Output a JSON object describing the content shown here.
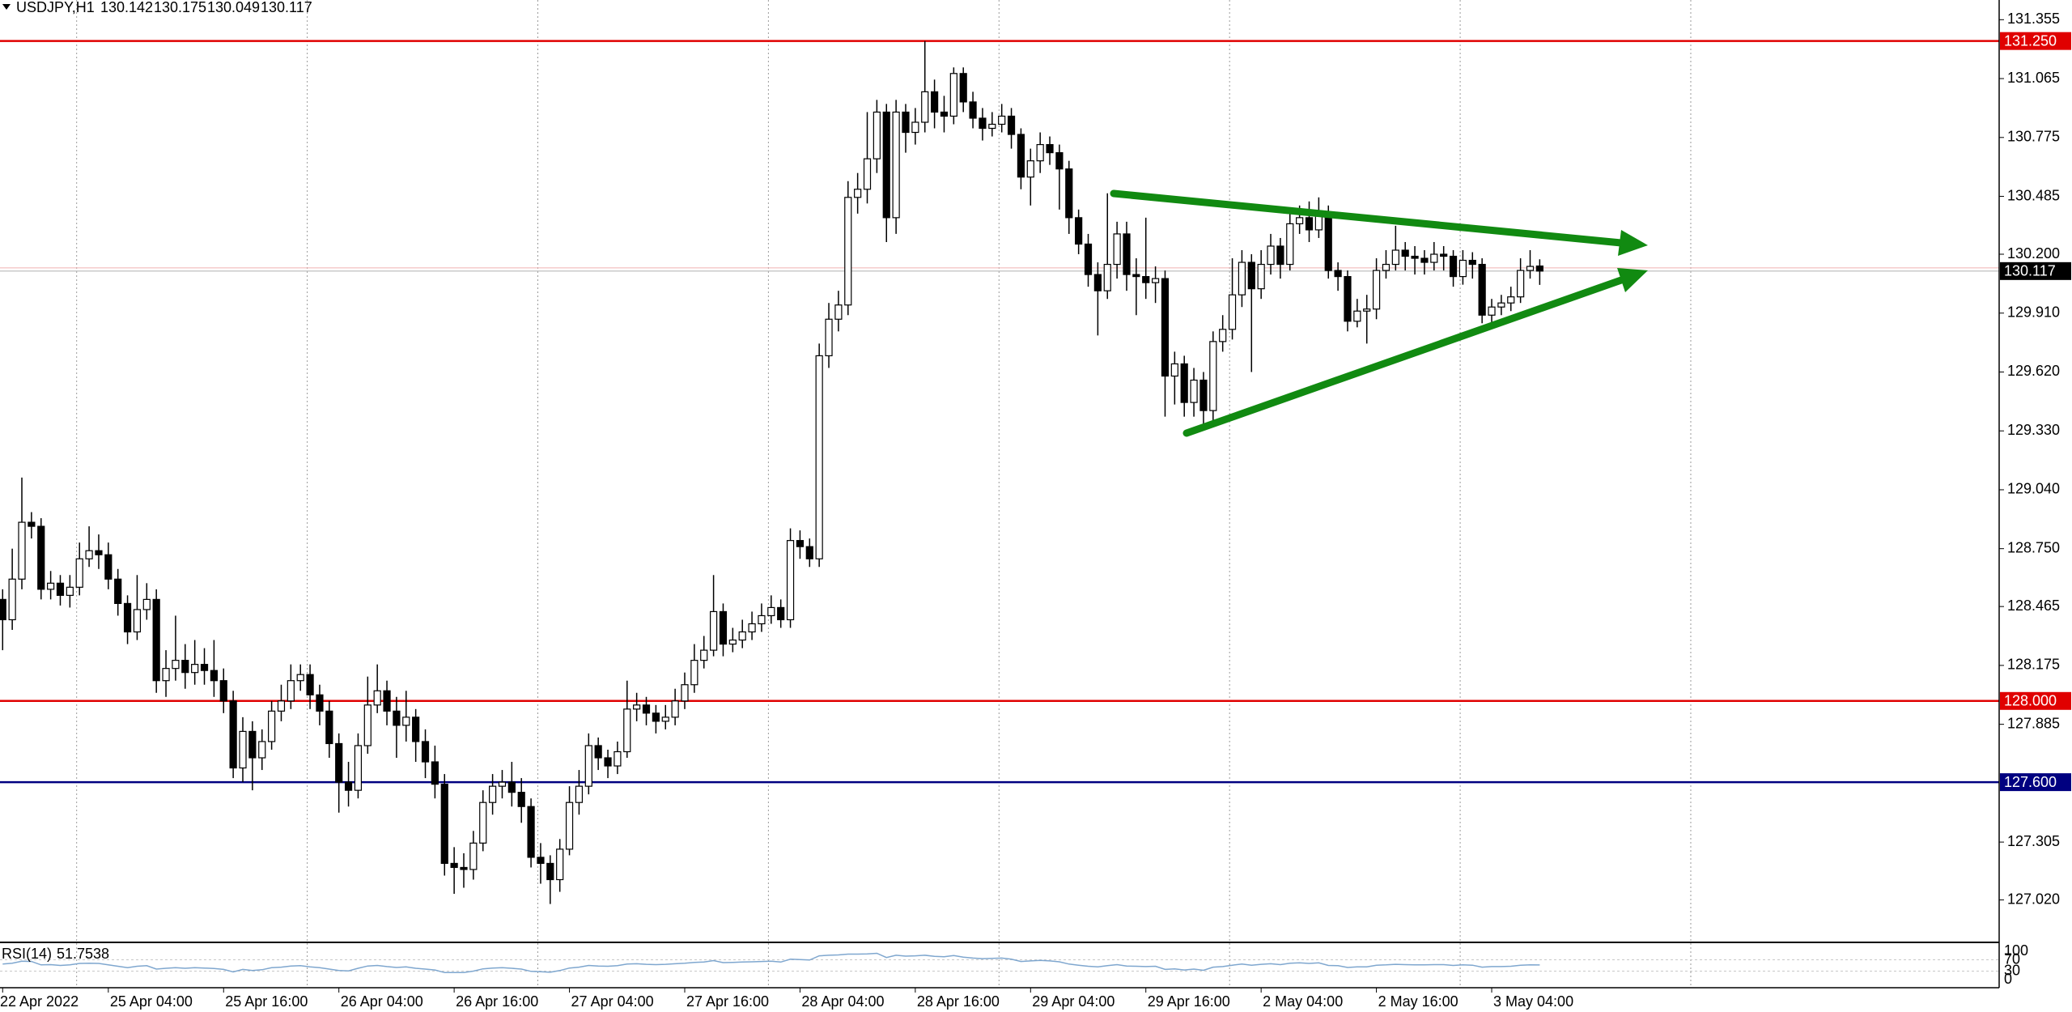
{
  "chart_data": {
    "type": "candlestick",
    "title": "USDJPY,H1",
    "ylim": [
      126.819,
      131.452
    ],
    "yticks": [
      131.355,
      131.065,
      130.775,
      130.485,
      {
        "value": 130.2,
        "label": "130.200"
      },
      {
        "value": 129.91,
        "label": "129.910"
      },
      {
        "value": 129.62,
        "label": "129.620"
      },
      {
        "value": 129.33,
        "label": "129.330"
      },
      {
        "value": 129.04,
        "label": "129.040"
      },
      {
        "value": 128.75,
        "label": "128.750"
      },
      128.465,
      128.175,
      127.885,
      127.305,
      {
        "value": 127.02,
        "label": "127.020"
      }
    ],
    "categories": [
      "22 Apr 2022",
      null,
      null,
      null,
      null,
      null,
      null,
      null,
      null,
      null,
      null,
      "25 Apr 04:00",
      null,
      null,
      null,
      null,
      null,
      null,
      null,
      null,
      null,
      null,
      null,
      "25 Apr 16:00",
      null,
      null,
      null,
      null,
      null,
      null,
      null,
      null,
      null,
      null,
      null,
      "26 Apr 04:00",
      null,
      null,
      null,
      null,
      null,
      null,
      null,
      null,
      null,
      null,
      null,
      "26 Apr 16:00",
      null,
      null,
      null,
      null,
      null,
      null,
      null,
      null,
      null,
      null,
      null,
      "27 Apr 04:00",
      null,
      null,
      null,
      null,
      null,
      null,
      null,
      null,
      null,
      null,
      null,
      "27 Apr 16:00",
      null,
      null,
      null,
      null,
      null,
      null,
      null,
      null,
      null,
      null,
      null,
      "28 Apr 04:00",
      null,
      null,
      null,
      null,
      null,
      null,
      null,
      null,
      null,
      null,
      null,
      "28 Apr 16:00",
      null,
      null,
      null,
      null,
      null,
      null,
      null,
      null,
      null,
      null,
      null,
      "29 Apr 04:00",
      null,
      null,
      null,
      null,
      null,
      null,
      null,
      null,
      null,
      null,
      null,
      "29 Apr 16:00",
      null,
      null,
      null,
      null,
      null,
      null,
      null,
      null,
      null,
      null,
      null,
      "2 May 04:00",
      null,
      null,
      null,
      null,
      null,
      null,
      null,
      null,
      null,
      null,
      null,
      "2 May 16:00",
      null,
      null,
      null,
      null,
      null,
      null,
      null,
      null,
      null,
      null,
      null,
      "3 May 04:00",
      null,
      null,
      null,
      null,
      null
    ],
    "candles": [
      [
        128.5,
        128.55,
        128.25,
        128.4
      ],
      [
        128.4,
        128.75,
        128.35,
        128.6
      ],
      [
        128.6,
        129.1,
        128.55,
        128.88
      ],
      [
        128.88,
        128.93,
        128.8,
        128.86
      ],
      [
        128.86,
        128.9,
        128.5,
        128.55
      ],
      [
        128.55,
        128.64,
        128.5,
        128.58
      ],
      [
        128.58,
        128.62,
        128.47,
        128.52
      ],
      [
        128.52,
        128.62,
        128.46,
        128.56
      ],
      [
        128.56,
        128.78,
        128.52,
        128.7
      ],
      [
        128.7,
        128.86,
        128.66,
        128.74
      ],
      [
        128.74,
        128.82,
        128.65,
        128.72
      ],
      [
        128.72,
        128.78,
        128.55,
        128.6
      ],
      [
        128.6,
        128.65,
        128.42,
        128.48
      ],
      [
        128.48,
        128.52,
        128.28,
        128.34
      ],
      [
        128.34,
        128.62,
        128.3,
        128.45
      ],
      [
        128.45,
        128.58,
        128.4,
        128.5
      ],
      [
        128.5,
        128.55,
        128.04,
        128.1
      ],
      [
        128.1,
        128.25,
        128.02,
        128.16
      ],
      [
        128.16,
        128.42,
        128.1,
        128.2
      ],
      [
        128.2,
        128.28,
        128.06,
        128.14
      ],
      [
        128.14,
        128.3,
        128.08,
        128.18
      ],
      [
        128.18,
        128.26,
        128.08,
        128.15
      ],
      [
        128.15,
        128.3,
        128.02,
        128.1
      ],
      [
        128.1,
        128.16,
        127.94,
        128.0
      ],
      [
        128.0,
        128.05,
        127.62,
        127.67
      ],
      [
        127.67,
        127.92,
        127.6,
        127.85
      ],
      [
        127.85,
        127.9,
        127.56,
        127.72
      ],
      [
        127.72,
        127.86,
        127.66,
        127.8
      ],
      [
        127.8,
        128.0,
        127.76,
        127.95
      ],
      [
        127.95,
        128.08,
        127.9,
        128.0
      ],
      [
        128.0,
        128.18,
        127.96,
        128.1
      ],
      [
        128.1,
        128.18,
        128.05,
        128.13
      ],
      [
        128.13,
        128.18,
        127.96,
        128.03
      ],
      [
        128.03,
        128.08,
        127.88,
        127.95
      ],
      [
        127.95,
        128.0,
        127.72,
        127.79
      ],
      [
        127.79,
        127.84,
        127.45,
        127.6
      ],
      [
        127.6,
        127.7,
        127.48,
        127.56
      ],
      [
        127.56,
        127.84,
        127.52,
        127.78
      ],
      [
        127.78,
        128.12,
        127.74,
        127.98
      ],
      [
        127.98,
        128.18,
        127.94,
        128.05
      ],
      [
        128.05,
        128.1,
        127.88,
        127.95
      ],
      [
        127.95,
        128.02,
        127.72,
        127.88
      ],
      [
        127.88,
        128.05,
        127.8,
        127.92
      ],
      [
        127.92,
        127.96,
        127.7,
        127.8
      ],
      [
        127.8,
        127.86,
        127.62,
        127.7
      ],
      [
        127.7,
        127.78,
        127.52,
        127.59
      ],
      [
        127.59,
        127.64,
        127.14,
        127.2
      ],
      [
        127.2,
        127.28,
        127.05,
        127.18
      ],
      [
        127.18,
        127.25,
        127.08,
        127.17
      ],
      [
        127.17,
        127.36,
        127.12,
        127.3
      ],
      [
        127.3,
        127.56,
        127.26,
        127.5
      ],
      [
        127.5,
        127.64,
        127.44,
        127.58
      ],
      [
        127.58,
        127.66,
        127.52,
        127.6
      ],
      [
        127.6,
        127.7,
        127.48,
        127.55
      ],
      [
        127.55,
        127.62,
        127.4,
        127.48
      ],
      [
        127.48,
        127.52,
        127.18,
        127.23
      ],
      [
        127.23,
        127.3,
        127.1,
        127.2
      ],
      [
        127.2,
        127.24,
        127.0,
        127.12
      ],
      [
        127.12,
        127.32,
        127.06,
        127.27
      ],
      [
        127.27,
        127.58,
        127.24,
        127.5
      ],
      [
        127.5,
        127.66,
        127.44,
        127.58
      ],
      [
        127.58,
        127.84,
        127.54,
        127.78
      ],
      [
        127.78,
        127.82,
        127.66,
        127.72
      ],
      [
        127.72,
        127.76,
        127.62,
        127.68
      ],
      [
        127.68,
        127.8,
        127.64,
        127.75
      ],
      [
        127.75,
        128.1,
        127.72,
        127.96
      ],
      [
        127.96,
        128.04,
        127.9,
        127.98
      ],
      [
        127.98,
        128.02,
        127.88,
        127.94
      ],
      [
        127.94,
        127.98,
        127.84,
        127.9
      ],
      [
        127.9,
        127.98,
        127.86,
        127.92
      ],
      [
        127.92,
        128.06,
        127.88,
        128.0
      ],
      [
        128.0,
        128.14,
        127.96,
        128.08
      ],
      [
        128.08,
        128.28,
        128.04,
        128.2
      ],
      [
        128.2,
        128.32,
        128.16,
        128.25
      ],
      [
        128.25,
        128.62,
        128.22,
        128.44
      ],
      [
        128.44,
        128.48,
        128.22,
        128.28
      ],
      [
        128.28,
        128.36,
        128.24,
        128.3
      ],
      [
        128.3,
        128.4,
        128.26,
        128.34
      ],
      [
        128.34,
        128.44,
        128.3,
        128.38
      ],
      [
        128.38,
        128.48,
        128.34,
        128.42
      ],
      [
        128.42,
        128.52,
        128.38,
        128.46
      ],
      [
        128.46,
        128.5,
        128.36,
        128.4
      ],
      [
        128.4,
        128.85,
        128.36,
        128.79
      ],
      [
        128.79,
        128.84,
        128.7,
        128.76
      ],
      [
        128.76,
        128.8,
        128.66,
        128.7
      ],
      [
        128.7,
        129.76,
        128.66,
        129.7
      ],
      [
        129.7,
        129.96,
        129.64,
        129.88
      ],
      [
        129.88,
        130.02,
        129.82,
        129.95
      ],
      [
        129.95,
        130.56,
        129.9,
        130.48
      ],
      [
        130.48,
        130.6,
        130.4,
        130.52
      ],
      [
        130.52,
        130.9,
        130.45,
        130.67
      ],
      [
        130.67,
        130.96,
        130.6,
        130.9
      ],
      [
        130.9,
        130.94,
        130.26,
        130.38
      ],
      [
        130.38,
        130.96,
        130.3,
        130.9
      ],
      [
        130.9,
        130.94,
        130.7,
        130.8
      ],
      [
        130.8,
        130.92,
        130.74,
        130.85
      ],
      [
        130.85,
        131.25,
        130.8,
        131.0
      ],
      [
        131.0,
        131.06,
        130.82,
        130.9
      ],
      [
        130.9,
        130.98,
        130.8,
        130.88
      ],
      [
        130.88,
        131.12,
        130.84,
        131.09
      ],
      [
        131.09,
        131.12,
        130.9,
        130.95
      ],
      [
        130.95,
        131.0,
        130.82,
        130.87
      ],
      [
        130.87,
        130.92,
        130.76,
        130.82
      ],
      [
        130.82,
        130.9,
        130.78,
        130.84
      ],
      [
        130.84,
        130.94,
        130.8,
        130.88
      ],
      [
        130.88,
        130.92,
        130.72,
        130.79
      ],
      [
        130.79,
        130.82,
        130.52,
        130.58
      ],
      [
        130.58,
        130.72,
        130.44,
        130.66
      ],
      [
        130.66,
        130.8,
        130.6,
        130.74
      ],
      [
        130.74,
        130.78,
        130.64,
        130.7
      ],
      [
        130.7,
        130.74,
        130.42,
        130.62
      ],
      [
        130.62,
        130.66,
        130.3,
        130.38
      ],
      [
        130.38,
        130.42,
        130.2,
        130.25
      ],
      [
        130.25,
        130.3,
        130.04,
        130.1
      ],
      [
        130.1,
        130.16,
        129.8,
        130.02
      ],
      [
        130.02,
        130.5,
        129.98,
        130.15
      ],
      [
        130.15,
        130.36,
        130.08,
        130.3
      ],
      [
        130.3,
        130.36,
        130.02,
        130.1
      ],
      [
        130.1,
        130.18,
        129.9,
        130.09
      ],
      [
        130.09,
        130.38,
        129.98,
        130.06
      ],
      [
        130.06,
        130.14,
        129.96,
        130.08
      ],
      [
        130.08,
        130.12,
        129.4,
        129.6
      ],
      [
        129.6,
        129.72,
        129.46,
        129.66
      ],
      [
        129.66,
        129.7,
        129.4,
        129.47
      ],
      [
        129.47,
        129.64,
        129.4,
        129.58
      ],
      [
        129.58,
        129.62,
        129.36,
        129.43
      ],
      [
        129.43,
        129.82,
        129.38,
        129.77
      ],
      [
        129.77,
        129.9,
        129.72,
        129.83
      ],
      [
        129.83,
        130.18,
        129.78,
        130.0
      ],
      [
        130.0,
        130.22,
        129.94,
        130.16
      ],
      [
        130.16,
        130.2,
        129.62,
        130.03
      ],
      [
        130.03,
        130.22,
        129.98,
        130.15
      ],
      [
        130.15,
        130.3,
        130.1,
        130.24
      ],
      [
        130.24,
        130.28,
        130.08,
        130.15
      ],
      [
        130.15,
        130.42,
        130.12,
        130.35
      ],
      [
        130.35,
        130.44,
        130.3,
        130.38
      ],
      [
        130.38,
        130.46,
        130.26,
        130.32
      ],
      [
        130.32,
        130.48,
        130.28,
        130.4
      ],
      [
        130.4,
        130.44,
        130.08,
        130.12
      ],
      [
        130.12,
        130.16,
        130.02,
        130.09
      ],
      [
        130.09,
        130.12,
        129.82,
        129.87
      ],
      [
        129.87,
        129.98,
        129.84,
        129.92
      ],
      [
        129.92,
        130.0,
        129.76,
        129.93
      ],
      [
        129.93,
        130.18,
        129.88,
        130.12
      ],
      [
        130.12,
        130.22,
        130.08,
        130.15
      ],
      [
        130.15,
        130.34,
        130.12,
        130.22
      ],
      [
        130.22,
        130.26,
        130.12,
        130.19
      ],
      [
        130.19,
        130.24,
        130.1,
        130.18
      ],
      [
        130.18,
        130.22,
        130.1,
        130.16
      ],
      [
        130.16,
        130.26,
        130.12,
        130.2
      ],
      [
        130.2,
        130.24,
        130.12,
        130.19
      ],
      [
        130.19,
        130.22,
        130.04,
        130.09
      ],
      [
        130.09,
        130.22,
        130.05,
        130.17
      ],
      [
        130.17,
        130.21,
        130.08,
        130.15
      ],
      [
        130.15,
        130.18,
        129.86,
        129.9
      ],
      [
        129.9,
        129.98,
        129.86,
        129.94
      ],
      [
        129.94,
        130.0,
        129.9,
        129.96
      ],
      [
        129.96,
        130.04,
        129.92,
        129.99
      ],
      [
        129.99,
        130.18,
        129.96,
        130.12
      ],
      [
        130.12,
        130.22,
        130.08,
        130.14
      ],
      [
        130.142,
        130.175,
        130.049,
        130.117
      ]
    ],
    "bull_color": "#ffffff",
    "bear_color": "#000000",
    "levels": [
      {
        "value": 131.25,
        "label": "131.250",
        "color": "#e00000"
      },
      {
        "value": 128.0,
        "label": "128.000",
        "color": "#e00000"
      },
      {
        "value": 127.6,
        "label": "127.600",
        "color": "#000080"
      }
    ],
    "indicator": {
      "name": "RSI(14)",
      "color": "#7fa7cf",
      "ylim": [
        0,
        100
      ],
      "yticks": [
        100,
        70,
        30,
        0
      ],
      "values": [
        55,
        58,
        65,
        64,
        52,
        53,
        50,
        52,
        57,
        58,
        57,
        52,
        47,
        42,
        47,
        49,
        37,
        40,
        42,
        40,
        42,
        41,
        39,
        36,
        27,
        36,
        32,
        35,
        42,
        44,
        48,
        49,
        45,
        42,
        37,
        32,
        31,
        40,
        48,
        50,
        46,
        43,
        45,
        40,
        37,
        34,
        25,
        25,
        25,
        30,
        38,
        41,
        42,
        40,
        37,
        29,
        28,
        26,
        32,
        41,
        44,
        50,
        48,
        47,
        49,
        55,
        56,
        54,
        53,
        54,
        56,
        58,
        61,
        62,
        67,
        60,
        61,
        62,
        63,
        64,
        65,
        62,
        72,
        71,
        69,
        84,
        86,
        87,
        90,
        90,
        91,
        93,
        78,
        86,
        83,
        84,
        86,
        82,
        81,
        85,
        79,
        76,
        74,
        75,
        76,
        72,
        64,
        66,
        68,
        66,
        63,
        55,
        51,
        47,
        45,
        49,
        53,
        48,
        47,
        46,
        47,
        36,
        38,
        34,
        37,
        33,
        44,
        46,
        51,
        55,
        51,
        54,
        56,
        53,
        58,
        59,
        57,
        59,
        50,
        49,
        43,
        45,
        45,
        51,
        52,
        54,
        53,
        52,
        52,
        53,
        53,
        50,
        52,
        51,
        44,
        46,
        46,
        47,
        51,
        52,
        51.7538
      ]
    }
  }
}
